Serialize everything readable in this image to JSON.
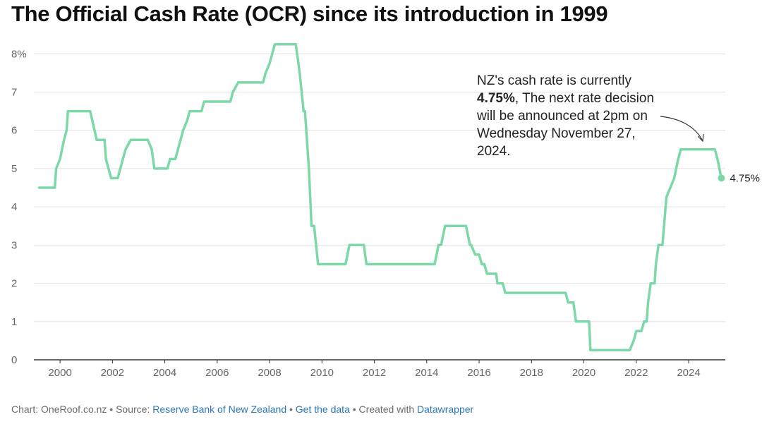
{
  "title": "The Official Cash Rate (OCR) since its introduction in 1999",
  "annotation": {
    "line1": "NZ's cash rate is currently",
    "bold": "4.75%",
    "rest": ", The next rate decision will be announced at 2pm on Wednesday November 27, 2024."
  },
  "end_label": "4.75%",
  "footer": {
    "chart_prefix": "Chart: OneRoof.co.nz",
    "sep1": " • Source: ",
    "source_link": "Reserve Bank of New Zealand",
    "sep2": " • ",
    "data_link": "Get the data",
    "sep3": " • Created with ",
    "tool_link": "Datawrapper"
  },
  "colors": {
    "line": "#7dd8a8",
    "grid": "#e2e2e2",
    "axis": "#333333",
    "link": "#2a78b8"
  },
  "chart_data": {
    "type": "line",
    "title": "The Official Cash Rate (OCR) since its introduction in 1999",
    "xlabel": "",
    "ylabel": "",
    "xlim": [
      1999.0,
      2025.4
    ],
    "ylim": [
      0,
      8.3
    ],
    "y_ticks": [
      0,
      1,
      2,
      3,
      4,
      5,
      6,
      7,
      8
    ],
    "y_tick_labels": [
      "0",
      "1",
      "2",
      "3",
      "4",
      "5",
      "6",
      "7",
      "8%"
    ],
    "x_ticks": [
      2000,
      2002,
      2004,
      2006,
      2008,
      2010,
      2012,
      2014,
      2016,
      2018,
      2020,
      2022,
      2024
    ],
    "x_tick_labels": [
      "2000",
      "2002",
      "2004",
      "2006",
      "2008",
      "2010",
      "2012",
      "2014",
      "2016",
      "2018",
      "2020",
      "2022",
      "2024"
    ],
    "grid": "horizontal",
    "series": [
      {
        "points": [
          [
            1999.2,
            4.5
          ],
          [
            1999.6,
            4.5
          ],
          [
            1999.8,
            4.5
          ],
          [
            1999.85,
            5.0
          ],
          [
            2000.0,
            5.25
          ],
          [
            2000.15,
            5.75
          ],
          [
            2000.25,
            6.0
          ],
          [
            2000.3,
            6.5
          ],
          [
            2001.15,
            6.5
          ],
          [
            2001.4,
            5.75
          ],
          [
            2001.7,
            5.75
          ],
          [
            2001.75,
            5.25
          ],
          [
            2001.85,
            5.0
          ],
          [
            2001.95,
            4.75
          ],
          [
            2002.2,
            4.75
          ],
          [
            2002.4,
            5.25
          ],
          [
            2002.5,
            5.5
          ],
          [
            2002.7,
            5.75
          ],
          [
            2003.35,
            5.75
          ],
          [
            2003.5,
            5.5
          ],
          [
            2003.6,
            5.0
          ],
          [
            2004.1,
            5.0
          ],
          [
            2004.2,
            5.25
          ],
          [
            2004.4,
            5.25
          ],
          [
            2004.5,
            5.5
          ],
          [
            2004.7,
            6.0
          ],
          [
            2004.85,
            6.25
          ],
          [
            2004.95,
            6.5
          ],
          [
            2005.4,
            6.5
          ],
          [
            2005.5,
            6.75
          ],
          [
            2006.5,
            6.75
          ],
          [
            2006.6,
            7.0
          ],
          [
            2006.8,
            7.25
          ],
          [
            2007.2,
            7.25
          ],
          [
            2007.75,
            7.25
          ],
          [
            2007.85,
            7.5
          ],
          [
            2008.0,
            7.75
          ],
          [
            2008.1,
            8.0
          ],
          [
            2008.2,
            8.25
          ],
          [
            2009.0,
            8.25
          ],
          [
            2009.05,
            8.0
          ],
          [
            2009.15,
            7.5
          ],
          [
            2009.3,
            6.5
          ],
          [
            2009.35,
            6.5
          ],
          [
            2009.5,
            5.0
          ],
          [
            2009.6,
            3.5
          ],
          [
            2009.7,
            3.5
          ],
          [
            2009.85,
            2.5
          ],
          [
            2010.9,
            2.5
          ],
          [
            2011.05,
            3.0
          ],
          [
            2011.6,
            3.0
          ],
          [
            2011.7,
            2.5
          ],
          [
            2014.3,
            2.5
          ],
          [
            2014.45,
            3.0
          ],
          [
            2014.55,
            3.0
          ],
          [
            2014.7,
            3.5
          ],
          [
            2015.5,
            3.5
          ],
          [
            2015.65,
            3.0
          ],
          [
            2015.7,
            3.0
          ],
          [
            2015.85,
            2.75
          ],
          [
            2016.0,
            2.75
          ],
          [
            2016.1,
            2.5
          ],
          [
            2016.2,
            2.5
          ],
          [
            2016.3,
            2.25
          ],
          [
            2016.65,
            2.25
          ],
          [
            2016.7,
            2.0
          ],
          [
            2016.9,
            2.0
          ],
          [
            2017.0,
            1.75
          ],
          [
            2019.3,
            1.75
          ],
          [
            2019.4,
            1.5
          ],
          [
            2019.6,
            1.5
          ],
          [
            2019.7,
            1.0
          ],
          [
            2020.2,
            1.0
          ],
          [
            2020.25,
            0.25
          ],
          [
            2021.75,
            0.25
          ],
          [
            2021.9,
            0.5
          ],
          [
            2022.0,
            0.75
          ],
          [
            2022.2,
            0.75
          ],
          [
            2022.3,
            1.0
          ],
          [
            2022.4,
            1.0
          ],
          [
            2022.45,
            1.5
          ],
          [
            2022.55,
            2.0
          ],
          [
            2022.7,
            2.0
          ],
          [
            2022.75,
            2.5
          ],
          [
            2022.85,
            3.0
          ],
          [
            2023.0,
            3.0
          ],
          [
            2023.15,
            4.25
          ],
          [
            2023.45,
            4.75
          ],
          [
            2023.6,
            5.25
          ],
          [
            2023.7,
            5.5
          ],
          [
            2025.0,
            5.5
          ],
          [
            2025.1,
            5.25
          ],
          [
            2025.25,
            4.75
          ]
        ]
      }
    ],
    "end_point": {
      "x": 2025.25,
      "y": 4.75,
      "label": "4.75%"
    }
  }
}
